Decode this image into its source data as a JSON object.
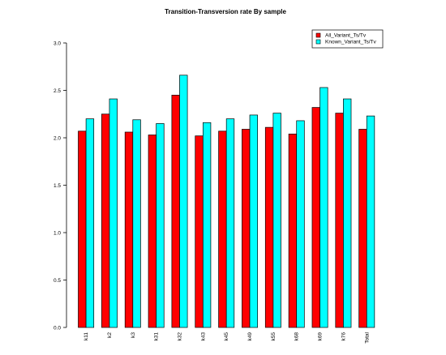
{
  "chart_data": {
    "type": "bar",
    "title": "Transition-Transversion rate By sample",
    "xlabel": "",
    "ylabel": "",
    "categories": [
      "k11",
      "k2",
      "k3",
      "k31",
      "k32",
      "k43",
      "k45",
      "k49",
      "k55",
      "k68",
      "k69",
      "k76",
      "Total"
    ],
    "series": [
      {
        "name": "All_Variant_Ts/Tv",
        "color": "#ff0000",
        "values": [
          2.07,
          2.25,
          2.06,
          2.03,
          2.45,
          2.02,
          2.07,
          2.09,
          2.11,
          2.04,
          2.32,
          2.26,
          2.09
        ]
      },
      {
        "name": "Known_Variant_Ts/Tv",
        "color": "#00ffff",
        "values": [
          2.2,
          2.41,
          2.19,
          2.15,
          2.66,
          2.16,
          2.2,
          2.24,
          2.26,
          2.18,
          2.53,
          2.41,
          2.23
        ]
      }
    ],
    "ylim": [
      0,
      3
    ],
    "yticks": [
      "0.0",
      "0.5",
      "1.0",
      "1.5",
      "2.0",
      "2.5",
      "3.0"
    ],
    "grid": false,
    "legend": "top-right"
  }
}
